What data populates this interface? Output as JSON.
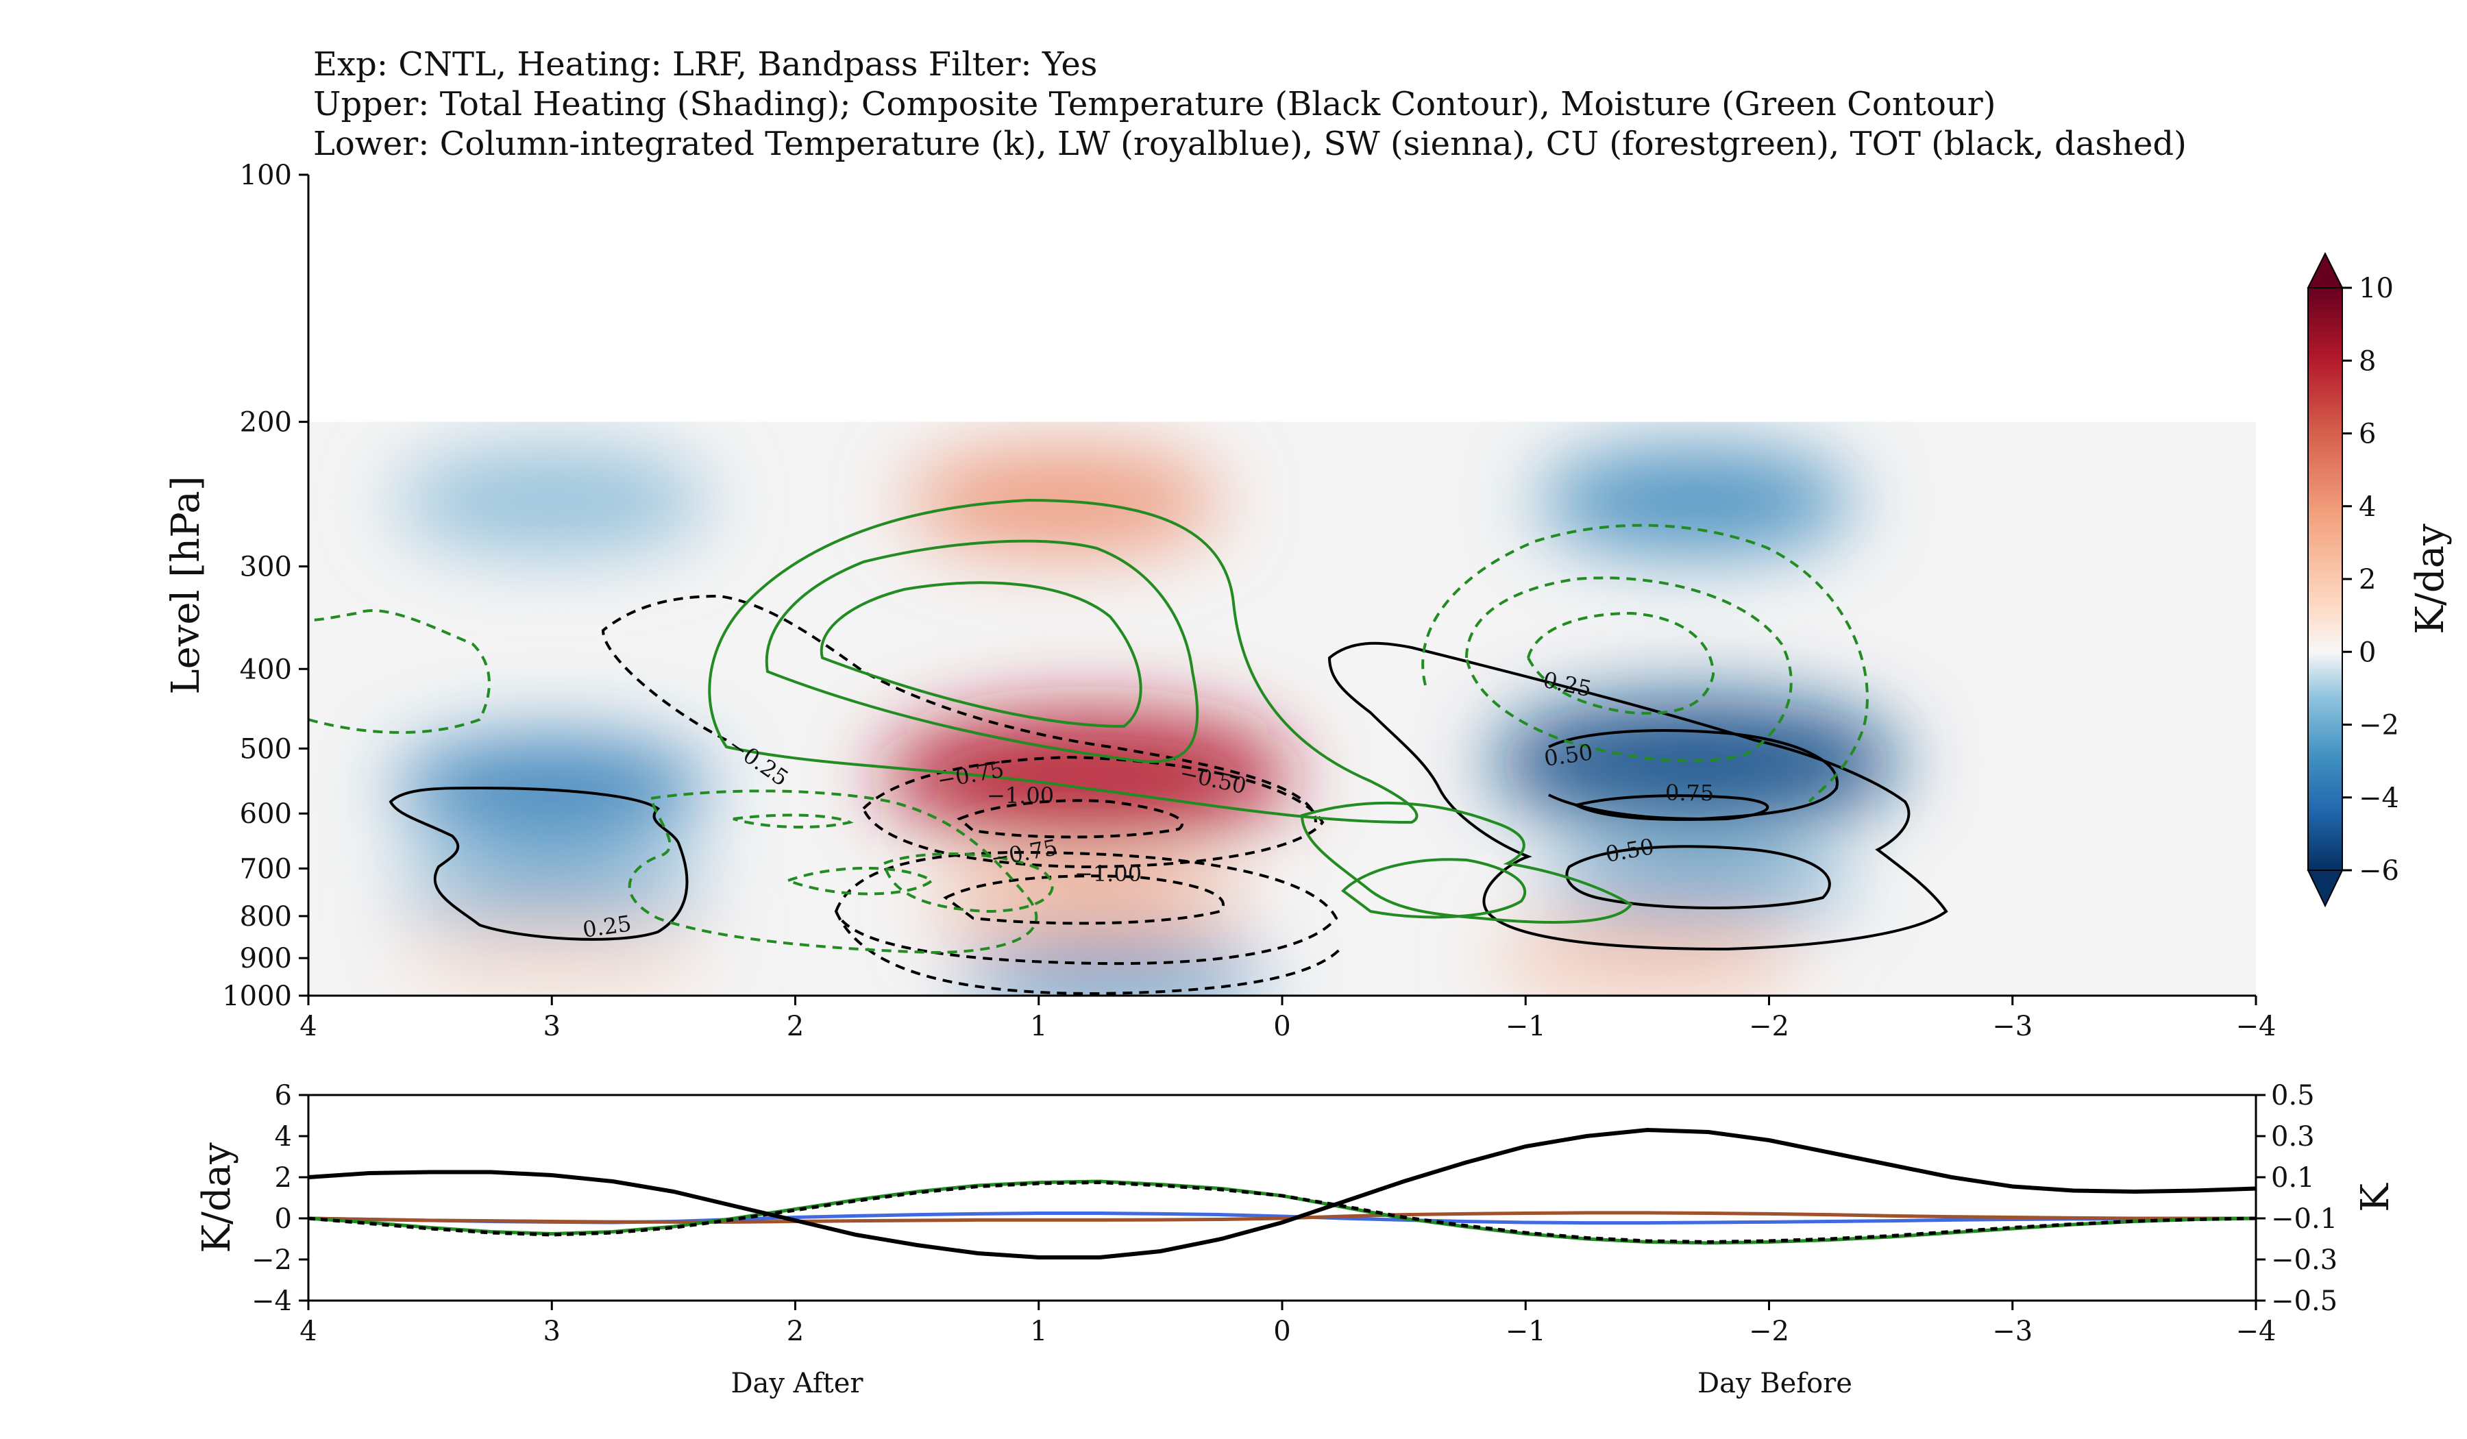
{
  "title_lines": [
    "Exp: CNTL, Heating: LRF, Bandpass Filter: Yes",
    "Upper: Total Heating (Shading); Composite Temperature (Black Contour), Moisture (Green Contour)",
    "Lower: Column-integrated Temperature (k), LW (royalblue), SW (sienna), CU (forestgreen), TOT (black, dashed)"
  ],
  "footer": {
    "left": "Day After",
    "right": "Day Before"
  },
  "chart_data": [
    {
      "type": "heatmap",
      "panel": "upper",
      "ylabel": "Level [hPa]",
      "xlim": [
        4,
        -4
      ],
      "ylim": [
        1000,
        100
      ],
      "y_scale": "log",
      "xticks": [
        "4",
        "3",
        "2",
        "1",
        "0",
        "−1",
        "−2",
        "−3",
        "−4"
      ],
      "yticks": [
        "100",
        "200",
        "300",
        "400",
        "500",
        "600",
        "700",
        "800",
        "900",
        "1000"
      ],
      "colorbar": {
        "label": "K/day",
        "range": [
          -6,
          10
        ],
        "ticks": [
          "10",
          "8",
          "6",
          "4",
          "2",
          "0",
          "−2",
          "−4",
          "−6"
        ],
        "colors": {
          "low": "#053061",
          "mid": "#f7f7f7",
          "high": "#67001f"
        }
      },
      "heating_centers": [
        {
          "day": 0.8,
          "hpa": 540,
          "value": 6.0
        },
        {
          "day": 0.9,
          "hpa": 250,
          "value": 2.5
        },
        {
          "day": 0.8,
          "hpa": 770,
          "value": 2.0
        },
        {
          "day": 0.7,
          "hpa": 950,
          "value": -2.5
        },
        {
          "day": -1.7,
          "hpa": 520,
          "value": -5.0
        },
        {
          "day": -1.7,
          "hpa": 250,
          "value": -2.5
        },
        {
          "day": -1.7,
          "hpa": 730,
          "value": -2.0
        },
        {
          "day": -1.5,
          "hpa": 900,
          "value": 1.5
        },
        {
          "day": 3.0,
          "hpa": 560,
          "value": -3.0
        },
        {
          "day": 3.0,
          "hpa": 740,
          "value": -1.8
        },
        {
          "day": 3.0,
          "hpa": 250,
          "value": -1.2
        },
        {
          "day": 3.0,
          "hpa": 900,
          "value": 0.8
        }
      ],
      "temperature_contour_labels": [
        "0.25",
        "0.50",
        "0.75",
        "−0.25",
        "−0.50",
        "−0.75",
        "−1.00",
        "−0.75",
        "−1.00",
        "0.25",
        "0.50",
        "0.75",
        "0.50"
      ],
      "moisture_contours": "green, solid positive / dashed negative"
    },
    {
      "type": "line",
      "panel": "lower",
      "ylabel": "K/day",
      "y2label": "K",
      "xlim": [
        4,
        -4
      ],
      "ylim": [
        -4,
        6
      ],
      "y2lim": [
        -0.5,
        0.5
      ],
      "xticks": [
        "4",
        "3",
        "2",
        "1",
        "0",
        "−1",
        "−2",
        "−3",
        "−4"
      ],
      "yticks": [
        "6",
        "4",
        "2",
        "0",
        "−2",
        "−4"
      ],
      "y2ticks": [
        "0.5",
        "0.3",
        "0.1",
        "−0.1",
        "−0.3",
        "−0.5"
      ],
      "x": [
        4,
        3.75,
        3.5,
        3.25,
        3,
        2.75,
        2.5,
        2.25,
        2,
        1.75,
        1.5,
        1.25,
        1,
        0.75,
        0.5,
        0.25,
        0,
        -0.25,
        -0.5,
        -0.75,
        -1,
        -1.25,
        -1.5,
        -1.75,
        -2,
        -2.25,
        -2.5,
        -2.75,
        -3,
        -3.25,
        -3.5,
        -3.75,
        -4
      ],
      "series": [
        {
          "name": "LW",
          "color": "#4169e1",
          "axis": "left",
          "values": [
            0,
            -0.05,
            -0.1,
            -0.15,
            -0.18,
            -0.2,
            -0.15,
            -0.05,
            0.05,
            0.12,
            0.18,
            0.22,
            0.25,
            0.25,
            0.22,
            0.18,
            0.1,
            0,
            -0.08,
            -0.15,
            -0.2,
            -0.22,
            -0.22,
            -0.2,
            -0.18,
            -0.15,
            -0.12,
            -0.08,
            -0.05,
            -0.03,
            -0.02,
            -0.01,
            0
          ]
        },
        {
          "name": "SW",
          "color": "#a0522d",
          "axis": "left",
          "values": [
            0,
            -0.05,
            -0.1,
            -0.12,
            -0.15,
            -0.17,
            -0.18,
            -0.18,
            -0.15,
            -0.12,
            -0.1,
            -0.08,
            -0.08,
            -0.08,
            -0.07,
            -0.05,
            0,
            0.1,
            0.18,
            0.22,
            0.25,
            0.27,
            0.27,
            0.25,
            0.22,
            0.18,
            0.12,
            0.08,
            0.05,
            0.02,
            0,
            0,
            0
          ]
        },
        {
          "name": "CU",
          "color": "#228b22",
          "axis": "left",
          "values": [
            0,
            -0.2,
            -0.45,
            -0.65,
            -0.75,
            -0.65,
            -0.4,
            0,
            0.45,
            0.9,
            1.3,
            1.6,
            1.75,
            1.8,
            1.65,
            1.45,
            1.1,
            0.55,
            0,
            -0.4,
            -0.75,
            -1.0,
            -1.15,
            -1.2,
            -1.15,
            -1.05,
            -0.9,
            -0.7,
            -0.5,
            -0.3,
            -0.15,
            -0.05,
            0
          ]
        },
        {
          "name": "TOT",
          "color": "#000000",
          "axis": "left",
          "dashed": true,
          "values": [
            0,
            -0.25,
            -0.5,
            -0.7,
            -0.8,
            -0.7,
            -0.45,
            -0.05,
            0.4,
            0.85,
            1.25,
            1.55,
            1.7,
            1.75,
            1.6,
            1.4,
            1.1,
            0.6,
            0.05,
            -0.35,
            -0.7,
            -0.95,
            -1.1,
            -1.15,
            -1.1,
            -1.0,
            -0.85,
            -0.65,
            -0.45,
            -0.28,
            -0.14,
            -0.05,
            0
          ]
        },
        {
          "name": "Column-integrated Temperature",
          "color": "#000000",
          "axis": "right",
          "values": [
            0.1,
            0.12,
            0.125,
            0.125,
            0.11,
            0.08,
            0.03,
            -0.04,
            -0.11,
            -0.18,
            -0.23,
            -0.27,
            -0.29,
            -0.29,
            -0.26,
            -0.2,
            -0.12,
            -0.02,
            0.08,
            0.17,
            0.25,
            0.3,
            0.33,
            0.32,
            0.28,
            0.22,
            0.16,
            0.1,
            0.055,
            0.035,
            0.03,
            0.035,
            0.045
          ]
        }
      ]
    }
  ]
}
